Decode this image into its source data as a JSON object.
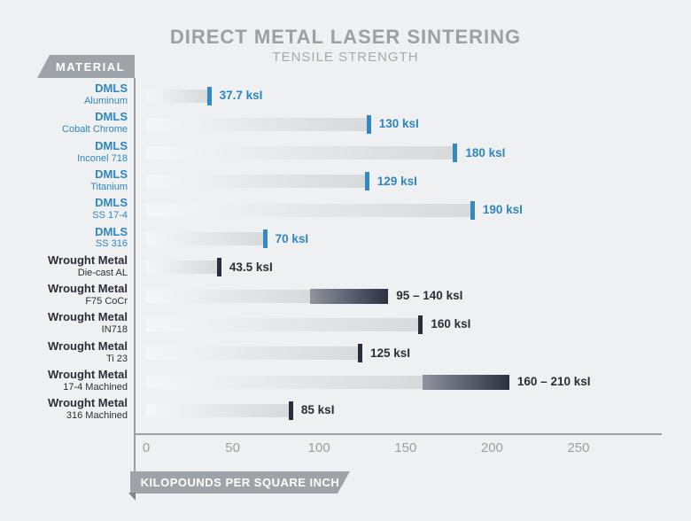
{
  "header": {
    "title": "DIRECT METAL LASER SINTERING",
    "subtitle": "TENSILE STRENGTH"
  },
  "material_badge_label": "MATERIAL",
  "axis_badge_label": "KILOPOUNDS PER SQUARE INCH",
  "colors": {
    "background": "#eef0f1",
    "title_gray": "#9aa0a5",
    "badge_gray": "#9da3a8",
    "dmls_blue": "#2e86c0",
    "wrought_dark": "#2b2e3a",
    "bar_light_end": "#d8d9db",
    "range_gradient_start": "#8e93a0",
    "range_gradient_end": "#2e3140",
    "axis_gray": "#9ba1a6"
  },
  "chart_data": {
    "type": "bar",
    "orientation": "horizontal",
    "title": "DIRECT METAL LASER SINTERING",
    "subtitle": "TENSILE STRENGTH",
    "xlabel": "KILOPOUNDS PER SQUARE INCH",
    "ylabel": "MATERIAL",
    "xlim": [
      0,
      250
    ],
    "xticks": [
      "0",
      "50",
      "100",
      "150",
      "200",
      "250"
    ],
    "xtick_values": [
      0,
      50,
      100,
      150,
      200,
      250
    ],
    "grid": false,
    "legend": false,
    "rows": [
      {
        "group": "DMLS",
        "name": "Aluminum",
        "value": 37.7,
        "label": "37.7 ksI",
        "style": "dmls"
      },
      {
        "group": "DMLS",
        "name": "Cobalt Chrome",
        "value": 130,
        "label": "130 ksI",
        "style": "dmls"
      },
      {
        "group": "DMLS",
        "name": "Inconel 718",
        "value": 180,
        "label": "180 ksI",
        "style": "dmls"
      },
      {
        "group": "DMLS",
        "name": "Titanium",
        "value": 129,
        "label": "129 ksI",
        "style": "dmls"
      },
      {
        "group": "DMLS",
        "name": "SS 17-4",
        "value": 190,
        "label": "190 ksI",
        "style": "dmls"
      },
      {
        "group": "DMLS",
        "name": "SS 316",
        "value": 70,
        "label": "70 ksI",
        "style": "dmls"
      },
      {
        "group": "Wrought Metal",
        "name": "Die-cast AL",
        "value": 43.5,
        "label": "43.5 ksI",
        "style": "wrought"
      },
      {
        "group": "Wrought Metal",
        "name": "F75 CoCr",
        "value": 95,
        "value_max": 140,
        "label": "95 – 140 ksI",
        "style": "wrought"
      },
      {
        "group": "Wrought Metal",
        "name": "IN718",
        "value": 160,
        "label": "160 ksI",
        "style": "wrought"
      },
      {
        "group": "Wrought Metal",
        "name": "Ti 23",
        "value": 125,
        "label": "125 ksI",
        "style": "wrought"
      },
      {
        "group": "Wrought Metal",
        "name": "17-4 Machined",
        "value": 160,
        "value_max": 210,
        "label": "160 – 210 ksI",
        "style": "wrought"
      },
      {
        "group": "Wrought Metal",
        "name": "316 Machined",
        "value": 85,
        "label": "85 ksI",
        "style": "wrought"
      }
    ]
  }
}
